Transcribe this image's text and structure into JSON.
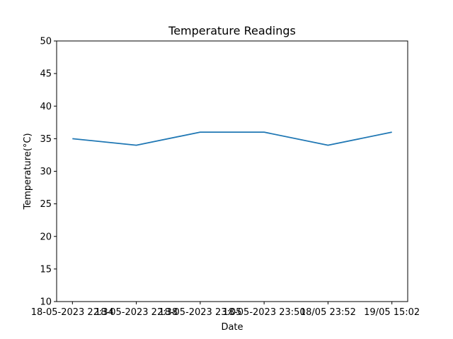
{
  "chart_data": {
    "type": "line",
    "title": "Temperature Readings",
    "xlabel": "Date",
    "ylabel": "Temperature(°C)",
    "categories": [
      "18-05-2023 22:34",
      "18-05-2023 22:38",
      "18-05-2023 23:05",
      "18-05-2023 23:50",
      "18/05 23:52",
      "19/05 15:02"
    ],
    "series": [
      {
        "values": [
          35,
          34,
          36,
          36,
          34,
          36
        ]
      }
    ],
    "ylim": [
      10,
      50
    ],
    "yticks": [
      10,
      15,
      20,
      25,
      30,
      35,
      40,
      45,
      50
    ],
    "grid": false,
    "legend": "none",
    "colors": {
      "line": "#1f77b4",
      "axes": "#000000",
      "background": "#ffffff"
    }
  }
}
